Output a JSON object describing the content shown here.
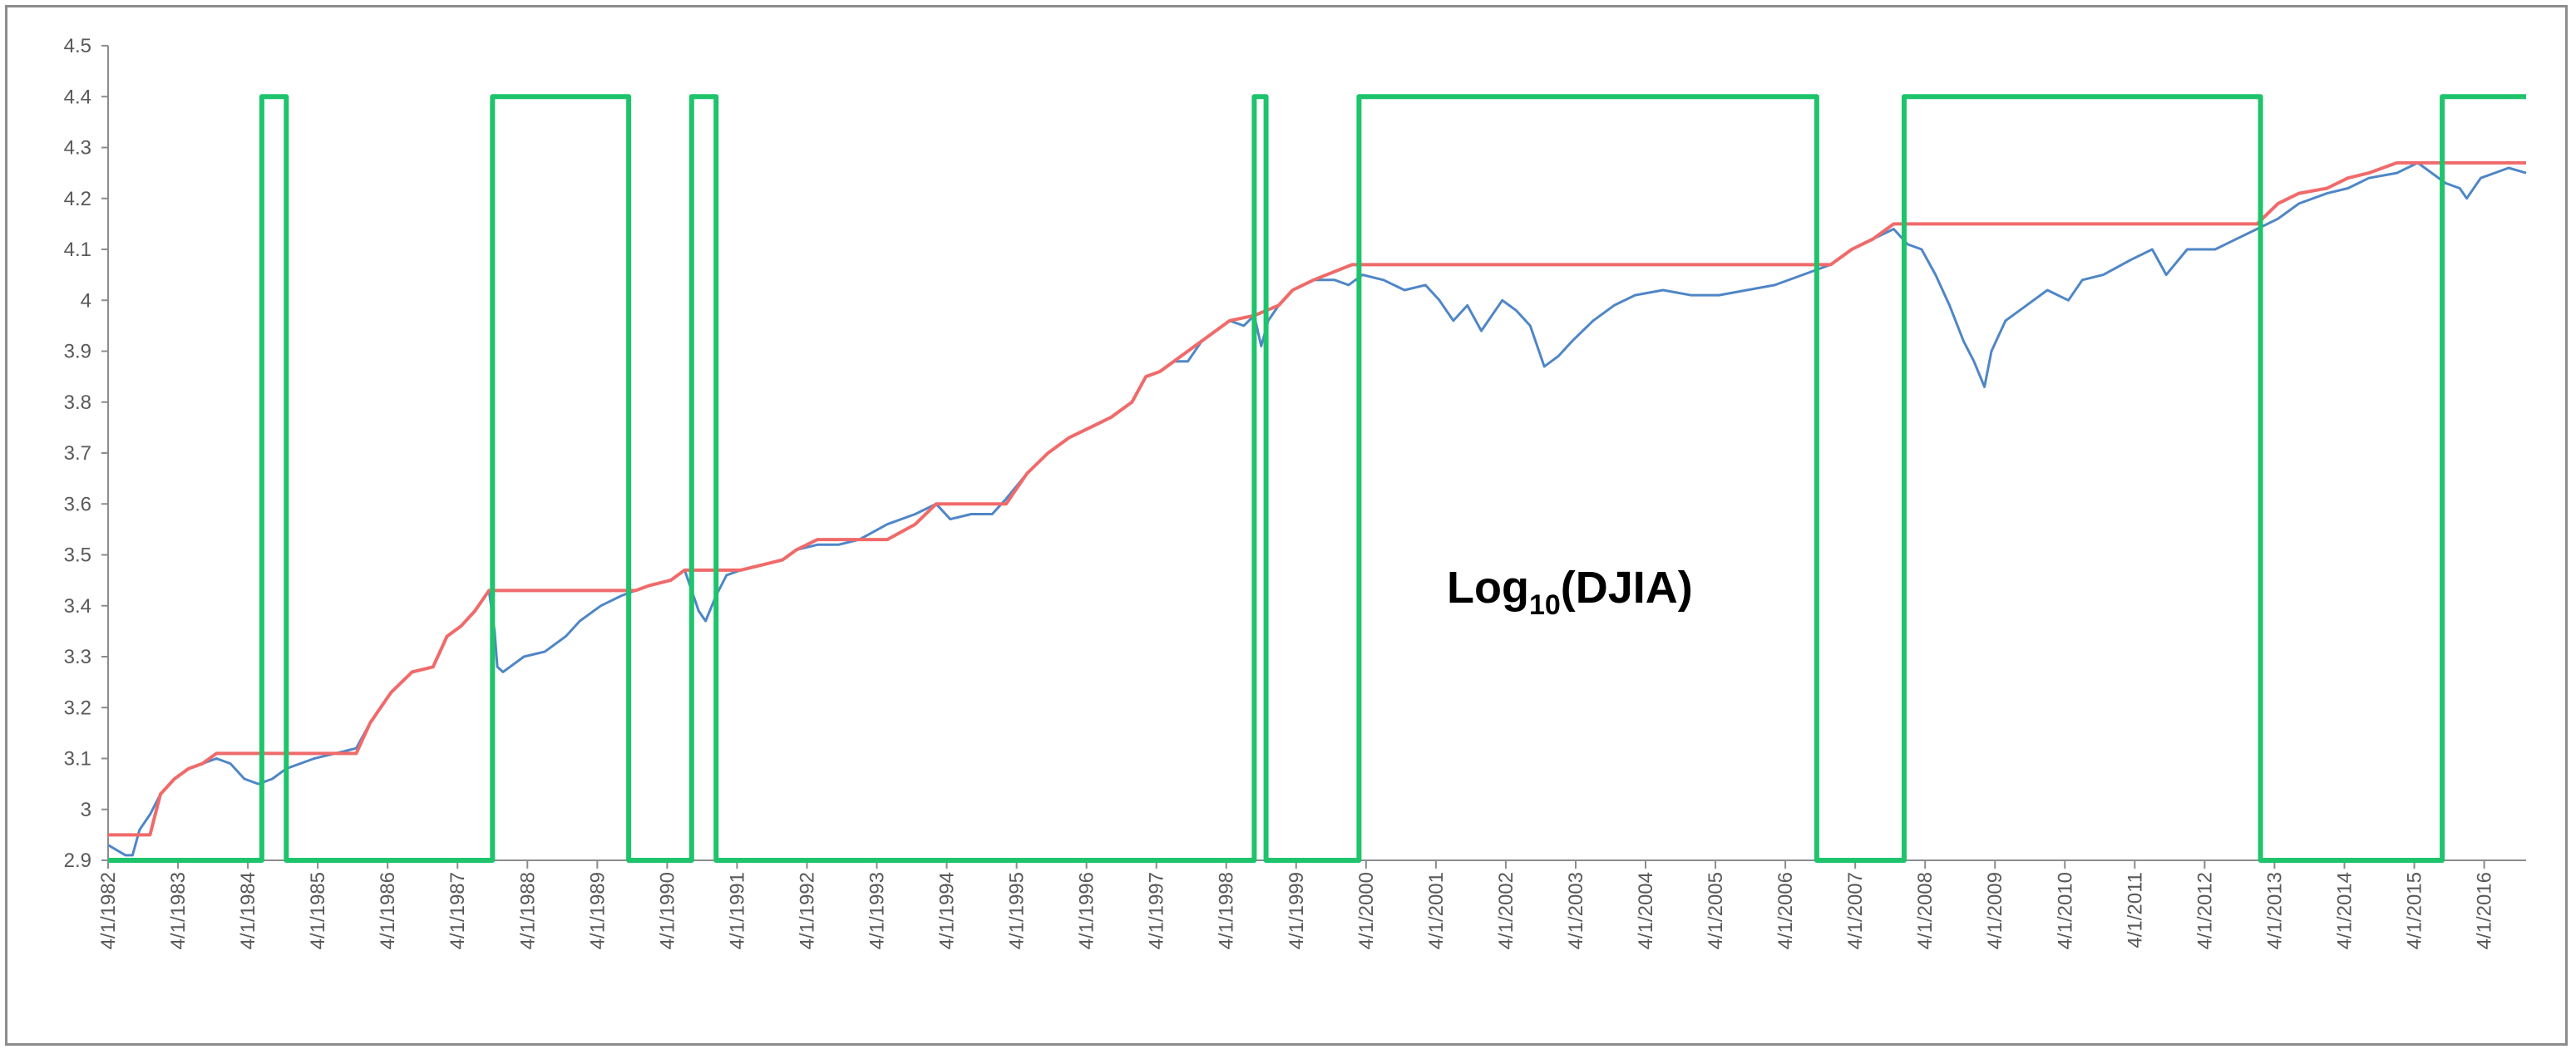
{
  "chart_data": {
    "type": "line",
    "title": "",
    "xlabel": "",
    "ylabel": "",
    "annotation": {
      "base": "Log",
      "subscript": "10",
      "suffix": "(DJIA)"
    },
    "ylim": [
      2.9,
      4.5
    ],
    "yticks": [
      "2.9",
      "3",
      "3.1",
      "3.2",
      "3.3",
      "3.4",
      "3.5",
      "3.6",
      "3.7",
      "3.8",
      "3.9",
      "4",
      "4.1",
      "4.2",
      "4.3",
      "4.4",
      "4.5"
    ],
    "xlim": [
      1982.25,
      2016.85
    ],
    "xticks": [
      "4/1/1982",
      "4/1/1983",
      "4/1/1984",
      "4/1/1985",
      "4/1/1986",
      "4/1/1987",
      "4/1/1988",
      "4/1/1989",
      "4/1/1990",
      "4/1/1991",
      "4/1/1992",
      "4/1/1993",
      "4/1/1994",
      "4/1/1995",
      "4/1/1996",
      "4/1/1997",
      "4/1/1998",
      "4/1/1999",
      "4/1/2000",
      "4/1/2001",
      "4/1/2002",
      "4/1/2003",
      "4/1/2004",
      "4/1/2005",
      "4/1/2006",
      "4/1/2007",
      "4/1/2008",
      "4/1/2009",
      "4/1/2010",
      "4/1/2011",
      "4/1/2012",
      "4/1/2013",
      "4/1/2014",
      "4/1/2015",
      "4/1/2016"
    ],
    "grid": false,
    "legend": "none",
    "colors": {
      "djia": "#4f86c6",
      "running_max": "#f06a6a",
      "indicator": "#1ec46b",
      "axis": "#8c8c8c"
    },
    "series": [
      {
        "key": "djia",
        "x": [
          1982.25,
          1982.5,
          1982.6,
          1982.7,
          1982.85,
          1983.0,
          1983.2,
          1983.4,
          1983.6,
          1983.8,
          1984.0,
          1984.2,
          1984.4,
          1984.6,
          1984.8,
          1985.0,
          1985.2,
          1985.5,
          1985.8,
          1986.0,
          1986.3,
          1986.6,
          1986.9,
          1987.1,
          1987.3,
          1987.5,
          1987.7,
          1987.78,
          1987.82,
          1987.9,
          1988.2,
          1988.5,
          1988.8,
          1989.0,
          1989.3,
          1989.6,
          1989.8,
          1990.0,
          1990.3,
          1990.5,
          1990.6,
          1990.7,
          1990.8,
          1990.95,
          1991.1,
          1991.3,
          1991.6,
          1991.9,
          1992.1,
          1992.4,
          1992.7,
          1993.0,
          1993.4,
          1993.8,
          1994.1,
          1994.3,
          1994.6,
          1994.9,
          1995.1,
          1995.4,
          1995.7,
          1996.0,
          1996.3,
          1996.6,
          1996.9,
          1997.1,
          1997.3,
          1997.5,
          1997.7,
          1997.9,
          1998.1,
          1998.3,
          1998.5,
          1998.65,
          1998.75,
          1998.85,
          1999.0,
          1999.2,
          1999.5,
          1999.8,
          2000.0,
          2000.2,
          2000.5,
          2000.8,
          2001.1,
          2001.3,
          2001.5,
          2001.7,
          2001.9,
          2002.2,
          2002.4,
          2002.6,
          2002.8,
          2003.0,
          2003.2,
          2003.5,
          2003.8,
          2004.1,
          2004.5,
          2004.9,
          2005.3,
          2005.7,
          2006.1,
          2006.5,
          2006.9,
          2007.2,
          2007.5,
          2007.8,
          2008.0,
          2008.2,
          2008.4,
          2008.6,
          2008.8,
          2008.95,
          2009.1,
          2009.2,
          2009.4,
          2009.7,
          2010.0,
          2010.3,
          2010.5,
          2010.8,
          2011.2,
          2011.5,
          2011.7,
          2012.0,
          2012.4,
          2012.7,
          2013.0,
          2013.3,
          2013.6,
          2014.0,
          2014.3,
          2014.6,
          2015.0,
          2015.3,
          2015.5,
          2015.7,
          2015.9,
          2016.0,
          2016.2,
          2016.4,
          2016.6,
          2016.85
        ],
        "y": [
          2.93,
          2.91,
          2.91,
          2.96,
          2.99,
          3.03,
          3.06,
          3.08,
          3.09,
          3.1,
          3.09,
          3.06,
          3.05,
          3.06,
          3.08,
          3.09,
          3.1,
          3.11,
          3.12,
          3.17,
          3.23,
          3.27,
          3.28,
          3.34,
          3.36,
          3.39,
          3.43,
          3.35,
          3.28,
          3.27,
          3.3,
          3.31,
          3.34,
          3.37,
          3.4,
          3.42,
          3.43,
          3.44,
          3.45,
          3.47,
          3.43,
          3.39,
          3.37,
          3.42,
          3.46,
          3.47,
          3.48,
          3.49,
          3.51,
          3.52,
          3.52,
          3.53,
          3.56,
          3.58,
          3.6,
          3.57,
          3.58,
          3.58,
          3.61,
          3.66,
          3.7,
          3.73,
          3.75,
          3.77,
          3.8,
          3.85,
          3.86,
          3.88,
          3.88,
          3.92,
          3.94,
          3.96,
          3.95,
          3.97,
          3.91,
          3.96,
          3.99,
          4.02,
          4.04,
          4.04,
          4.03,
          4.05,
          4.04,
          4.02,
          4.03,
          4.0,
          3.96,
          3.99,
          3.94,
          4.0,
          3.98,
          3.95,
          3.87,
          3.89,
          3.92,
          3.96,
          3.99,
          4.01,
          4.02,
          4.01,
          4.01,
          4.02,
          4.03,
          4.05,
          4.07,
          4.1,
          4.12,
          4.14,
          4.11,
          4.1,
          4.05,
          3.99,
          3.92,
          3.88,
          3.83,
          3.9,
          3.96,
          3.99,
          4.02,
          4.0,
          4.04,
          4.05,
          4.08,
          4.1,
          4.05,
          4.1,
          4.1,
          4.12,
          4.14,
          4.16,
          4.19,
          4.21,
          4.22,
          4.24,
          4.25,
          4.27,
          4.25,
          4.23,
          4.22,
          4.2,
          4.24,
          4.25,
          4.26,
          4.25
        ]
      },
      {
        "key": "running_max",
        "x": [
          1982.25,
          1982.85,
          1983.0,
          1983.2,
          1983.4,
          1983.6,
          1983.8,
          1985.8,
          1986.0,
          1986.3,
          1986.6,
          1986.9,
          1987.1,
          1987.3,
          1987.5,
          1987.7,
          1989.8,
          1990.0,
          1990.3,
          1990.5,
          1991.3,
          1991.6,
          1991.9,
          1992.1,
          1992.4,
          1993.4,
          1993.8,
          1994.1,
          1995.1,
          1995.4,
          1995.7,
          1996.0,
          1996.3,
          1996.6,
          1996.9,
          1997.1,
          1997.3,
          1997.5,
          1997.9,
          1998.1,
          1998.3,
          1998.65,
          1999.0,
          1999.2,
          1999.5,
          2000.05,
          2006.9,
          2007.2,
          2007.5,
          2007.8,
          2013.0,
          2013.3,
          2013.6,
          2014.0,
          2014.3,
          2014.6,
          2015.0,
          2015.3,
          2016.85
        ],
        "y": [
          2.95,
          2.95,
          3.03,
          3.06,
          3.08,
          3.09,
          3.11,
          3.11,
          3.17,
          3.23,
          3.27,
          3.28,
          3.34,
          3.36,
          3.39,
          3.43,
          3.43,
          3.44,
          3.45,
          3.47,
          3.47,
          3.48,
          3.49,
          3.51,
          3.53,
          3.53,
          3.56,
          3.6,
          3.6,
          3.66,
          3.7,
          3.73,
          3.75,
          3.77,
          3.8,
          3.85,
          3.86,
          3.88,
          3.92,
          3.94,
          3.96,
          3.97,
          3.99,
          4.02,
          4.04,
          4.07,
          4.07,
          4.1,
          4.12,
          4.15,
          4.15,
          4.19,
          4.21,
          4.22,
          4.24,
          4.25,
          4.27,
          4.27,
          4.27
        ]
      },
      {
        "key": "indicator",
        "low": 2.9,
        "high": 4.4,
        "on_intervals": [
          [
            1984.45,
            1984.8
          ],
          [
            1987.75,
            1989.7
          ],
          [
            1990.6,
            1990.95
          ],
          [
            1998.65,
            1998.82
          ],
          [
            2000.15,
            2006.7
          ],
          [
            2007.95,
            2013.05
          ],
          [
            2015.65,
            2016.85
          ]
        ]
      }
    ]
  }
}
